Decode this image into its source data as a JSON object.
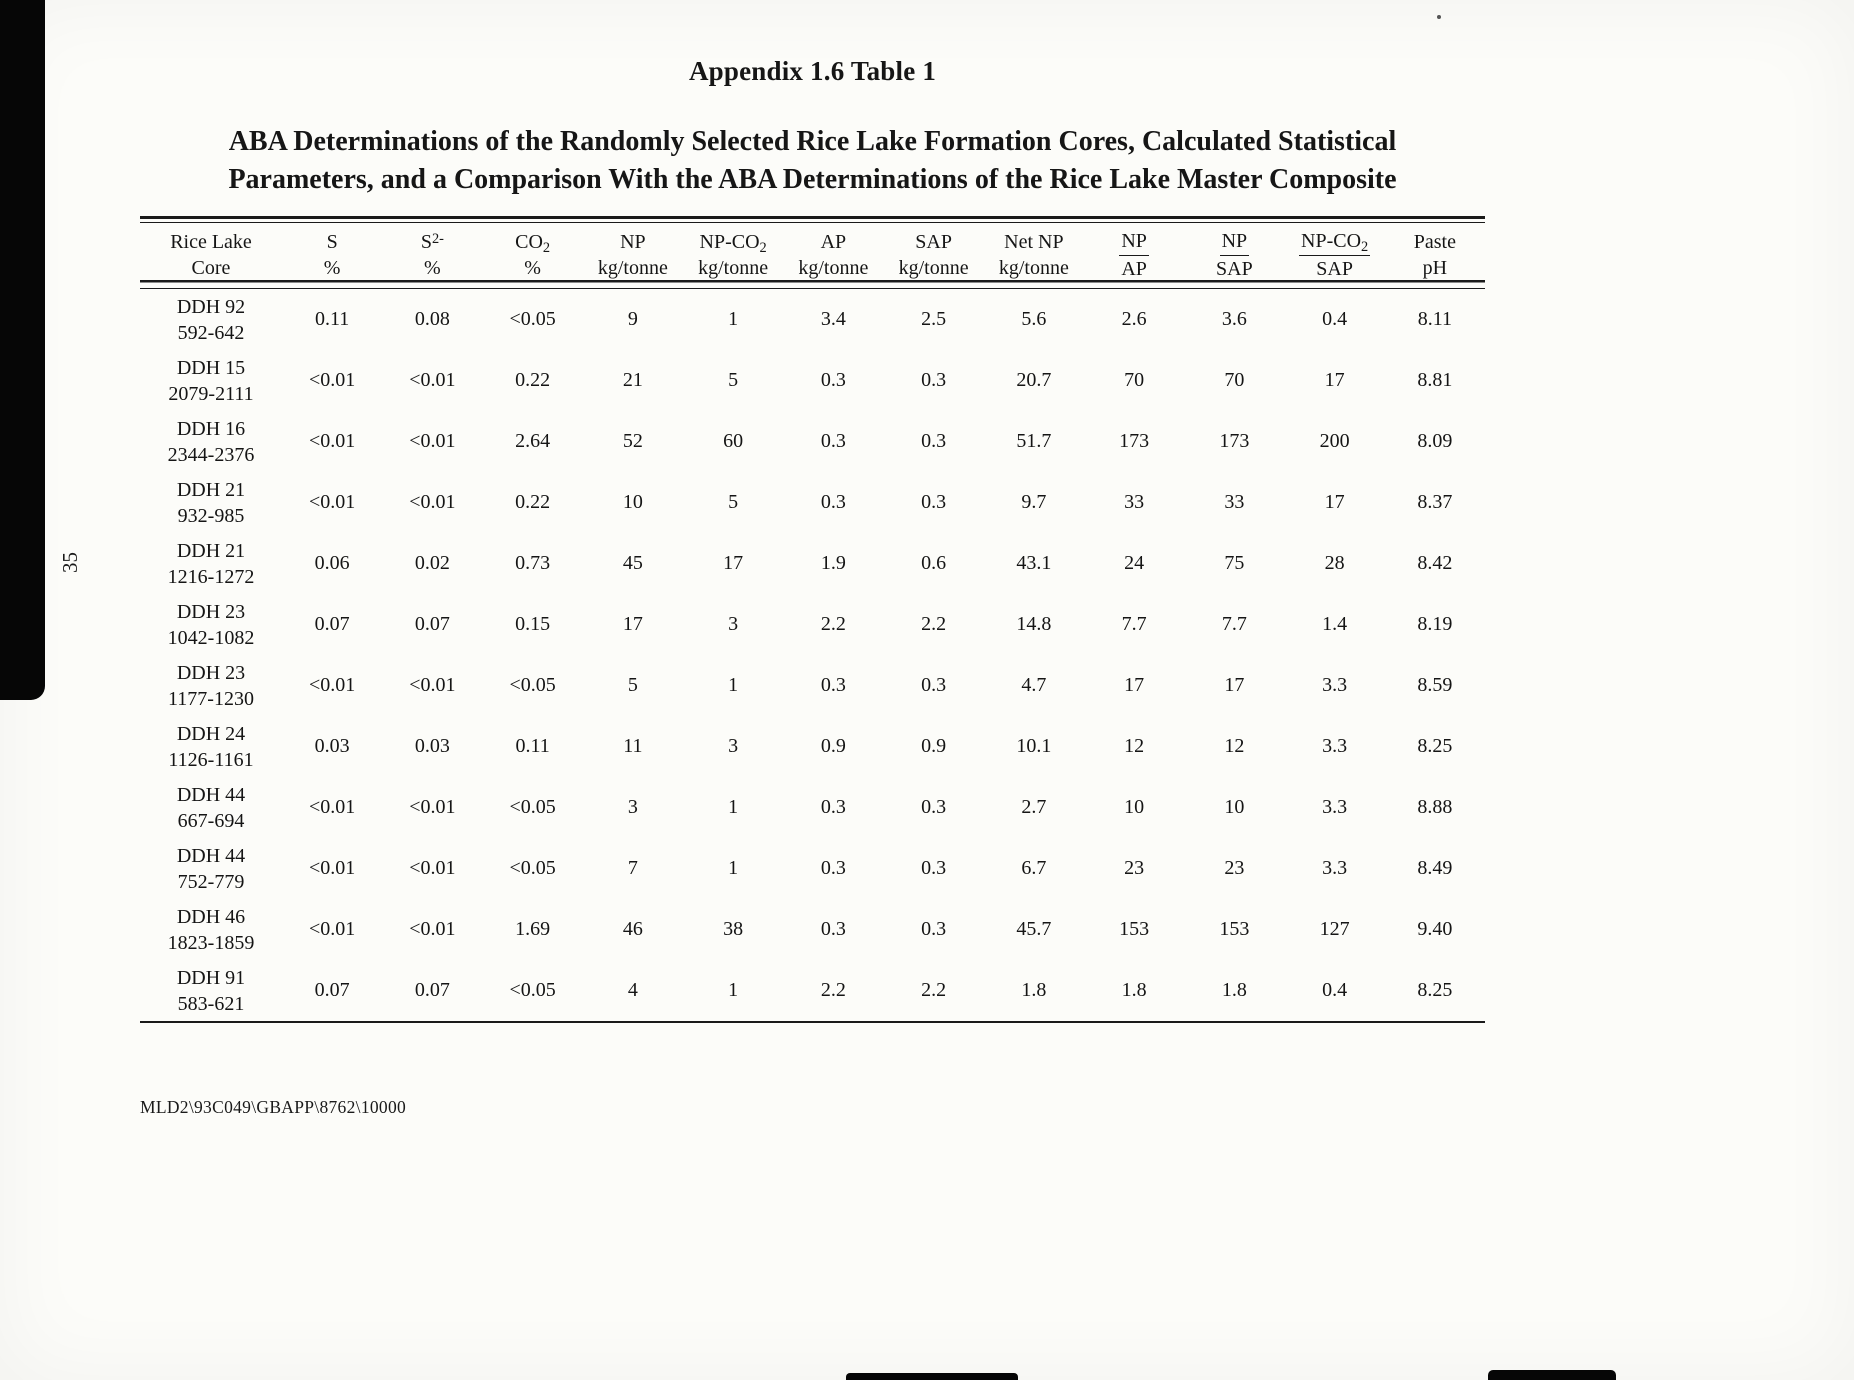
{
  "page": {
    "title": "Appendix 1.6 Table 1",
    "subtitle_lines": [
      "ABA Determinations of the Randomly Selected Rice Lake Formation Cores, Calculated Statistical",
      "Parameters, and a Comparison With the ABA Determinations of the Rice Lake Master Composite"
    ],
    "page_number": "35",
    "footer": "MLD2\\93C049\\GBAPP\\8762\\10000"
  },
  "table": {
    "columns": [
      {
        "l1": [
          {
            "t": "Rice Lake"
          }
        ],
        "l2": [
          {
            "t": "Core"
          }
        ]
      },
      {
        "l1": [
          {
            "t": "S"
          }
        ],
        "l2": [
          {
            "t": "%"
          }
        ]
      },
      {
        "l1": [
          {
            "t": "S"
          },
          {
            "t": "2-",
            "sup": true
          }
        ],
        "l2": [
          {
            "t": "%"
          }
        ]
      },
      {
        "l1": [
          {
            "t": "CO"
          },
          {
            "t": "2",
            "sub": true
          }
        ],
        "l2": [
          {
            "t": "%"
          }
        ]
      },
      {
        "l1": [
          {
            "t": "NP"
          }
        ],
        "l2": [
          {
            "t": "kg/tonne"
          }
        ]
      },
      {
        "l1": [
          {
            "t": "NP-CO"
          },
          {
            "t": "2",
            "sub": true
          }
        ],
        "l2": [
          {
            "t": "kg/tonne"
          }
        ]
      },
      {
        "l1": [
          {
            "t": "AP"
          }
        ],
        "l2": [
          {
            "t": "kg/tonne"
          }
        ]
      },
      {
        "l1": [
          {
            "t": "SAP"
          }
        ],
        "l2": [
          {
            "t": "kg/tonne"
          }
        ]
      },
      {
        "l1": [
          {
            "t": "Net NP"
          }
        ],
        "l2": [
          {
            "t": "kg/tonne"
          }
        ]
      },
      {
        "l1": [
          {
            "t": "NP"
          }
        ],
        "l2": [
          {
            "t": "AP"
          }
        ],
        "underline": true
      },
      {
        "l1": [
          {
            "t": "NP"
          }
        ],
        "l2": [
          {
            "t": "SAP"
          }
        ],
        "underline": true
      },
      {
        "l1": [
          {
            "t": "NP-CO"
          },
          {
            "t": "2",
            "sub": true
          }
        ],
        "l2": [
          {
            "t": "SAP"
          }
        ],
        "underline": true
      },
      {
        "l1": [
          {
            "t": "Paste"
          }
        ],
        "l2": [
          {
            "t": "pH"
          }
        ]
      }
    ],
    "rows": [
      {
        "core": "DDH 92",
        "interval": "592-642",
        "values": [
          "0.11",
          "0.08",
          "<0.05",
          "9",
          "1",
          "3.4",
          "2.5",
          "5.6",
          "2.6",
          "3.6",
          "0.4",
          "8.11"
        ]
      },
      {
        "core": "DDH 15",
        "interval": "2079-2111",
        "values": [
          "<0.01",
          "<0.01",
          "0.22",
          "21",
          "5",
          "0.3",
          "0.3",
          "20.7",
          "70",
          "70",
          "17",
          "8.81"
        ]
      },
      {
        "core": "DDH 16",
        "interval": "2344-2376",
        "values": [
          "<0.01",
          "<0.01",
          "2.64",
          "52",
          "60",
          "0.3",
          "0.3",
          "51.7",
          "173",
          "173",
          "200",
          "8.09"
        ]
      },
      {
        "core": "DDH 21",
        "interval": "932-985",
        "values": [
          "<0.01",
          "<0.01",
          "0.22",
          "10",
          "5",
          "0.3",
          "0.3",
          "9.7",
          "33",
          "33",
          "17",
          "8.37"
        ]
      },
      {
        "core": "DDH 21",
        "interval": "1216-1272",
        "values": [
          "0.06",
          "0.02",
          "0.73",
          "45",
          "17",
          "1.9",
          "0.6",
          "43.1",
          "24",
          "75",
          "28",
          "8.42"
        ]
      },
      {
        "core": "DDH 23",
        "interval": "1042-1082",
        "values": [
          "0.07",
          "0.07",
          "0.15",
          "17",
          "3",
          "2.2",
          "2.2",
          "14.8",
          "7.7",
          "7.7",
          "1.4",
          "8.19"
        ]
      },
      {
        "core": "DDH 23",
        "interval": "1177-1230",
        "values": [
          "<0.01",
          "<0.01",
          "<0.05",
          "5",
          "1",
          "0.3",
          "0.3",
          "4.7",
          "17",
          "17",
          "3.3",
          "8.59"
        ]
      },
      {
        "core": "DDH 24",
        "interval": "1126-1161",
        "values": [
          "0.03",
          "0.03",
          "0.11",
          "11",
          "3",
          "0.9",
          "0.9",
          "10.1",
          "12",
          "12",
          "3.3",
          "8.25"
        ]
      },
      {
        "core": "DDH 44",
        "interval": "667-694",
        "values": [
          "<0.01",
          "<0.01",
          "<0.05",
          "3",
          "1",
          "0.3",
          "0.3",
          "2.7",
          "10",
          "10",
          "3.3",
          "8.88"
        ]
      },
      {
        "core": "DDH 44",
        "interval": "752-779",
        "values": [
          "<0.01",
          "<0.01",
          "<0.05",
          "7",
          "1",
          "0.3",
          "0.3",
          "6.7",
          "23",
          "23",
          "3.3",
          "8.49"
        ]
      },
      {
        "core": "DDH 46",
        "interval": "1823-1859",
        "values": [
          "<0.01",
          "<0.01",
          "1.69",
          "46",
          "38",
          "0.3",
          "0.3",
          "45.7",
          "153",
          "153",
          "127",
          "9.40"
        ]
      },
      {
        "core": "DDH 91",
        "interval": "583-621",
        "values": [
          "0.07",
          "0.07",
          "<0.05",
          "4",
          "1",
          "2.2",
          "2.2",
          "1.8",
          "1.8",
          "1.8",
          "0.4",
          "8.25"
        ]
      }
    ]
  }
}
